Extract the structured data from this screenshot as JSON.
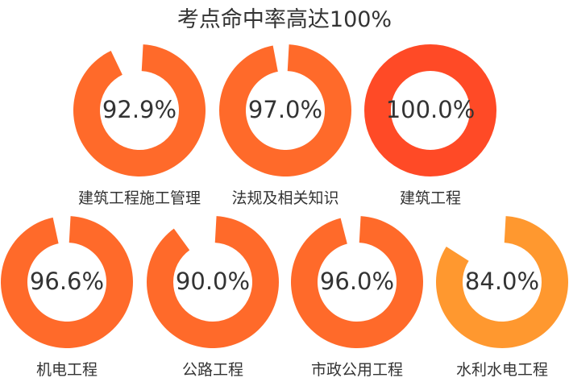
{
  "title": "考点命中率高达100%",
  "colors": {
    "orange": "#ff6a2a",
    "red": "#ff4a26",
    "amber": "#ff982f",
    "text": "#333333"
  },
  "chart_data": {
    "type": "pie",
    "title": "考点命中率高达100%",
    "series": [
      {
        "name": "建筑工程施工管理",
        "value": 92.9,
        "label": "92.9%",
        "color": "#ff6a2a"
      },
      {
        "name": "法规及相关知识",
        "value": 97.0,
        "label": "97.0%",
        "color": "#ff6a2a"
      },
      {
        "name": "建筑工程",
        "value": 100.0,
        "label": "100.0%",
        "color": "#ff4a26"
      },
      {
        "name": "机电工程",
        "value": 96.6,
        "label": "96.6%",
        "color": "#ff6a2a"
      },
      {
        "name": "公路工程",
        "value": 90.0,
        "label": "90.0%",
        "color": "#ff6a2a"
      },
      {
        "name": "市政公用工程",
        "value": 96.0,
        "label": "96.0%",
        "color": "#ff6a2a"
      },
      {
        "name": "水利水电工程",
        "value": 84.0,
        "label": "84.0%",
        "color": "#ff982f"
      }
    ]
  }
}
